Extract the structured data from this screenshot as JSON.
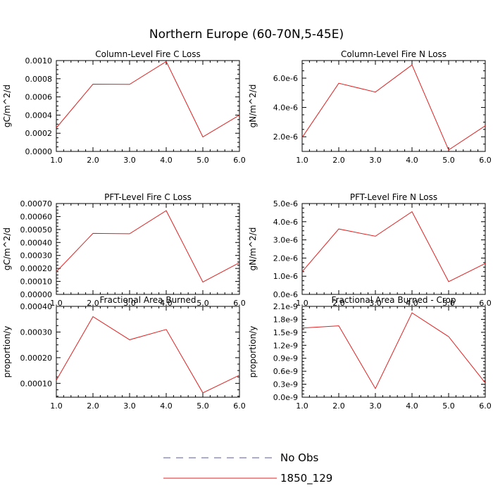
{
  "title": "Northern Europe (60-70N,5-45E)",
  "x_ticks": [
    "1.0",
    "2.0",
    "3.0",
    "4.0",
    "5.0",
    "6.0"
  ],
  "legend": [
    {
      "label": "No Obs",
      "style": "dashed",
      "color": "#5a5aa0"
    },
    {
      "label": "1850_129",
      "style": "solid",
      "color": "#e02020"
    }
  ],
  "chart_data": [
    {
      "type": "line",
      "title": "Column-Level Fire C Loss",
      "ylabel": "gC/m^2/d",
      "x": [
        1,
        2,
        3,
        4,
        5,
        6
      ],
      "ylim": [
        0,
        0.001
      ],
      "yticks": [
        0,
        0.0002,
        0.0004,
        0.0006,
        0.0008,
        0.001
      ],
      "ytick_labels": [
        "0.0000",
        "0.0002",
        "0.0004",
        "0.0006",
        "0.0008",
        "0.0010"
      ],
      "series": [
        {
          "name": "1850_129",
          "color": "#e02020",
          "values": [
            0.00026,
            0.00074,
            0.000738,
            0.00099,
            0.00016,
            0.0004
          ]
        }
      ]
    },
    {
      "type": "line",
      "title": "Column-Level Fire N Loss",
      "ylabel": "gN/m^2/d",
      "x": [
        1,
        2,
        3,
        4,
        5,
        6
      ],
      "ylim": [
        1e-06,
        7.2e-06
      ],
      "yticks": [
        2e-06,
        4e-06,
        6e-06
      ],
      "ytick_labels": [
        "2.0e-6",
        "4.0e-6",
        "6.0e-6"
      ],
      "series": [
        {
          "name": "1850_129",
          "color": "#e02020",
          "values": [
            1.95e-06,
            5.65e-06,
            5.05e-06,
            6.9e-06,
            1.1e-06,
            2.75e-06
          ]
        }
      ]
    },
    {
      "type": "line",
      "title": "PFT-Level Fire C Loss",
      "ylabel": "gC/m^2/d",
      "x": [
        1,
        2,
        3,
        4,
        5,
        6
      ],
      "ylim": [
        0,
        0.0007
      ],
      "yticks": [
        0,
        0.0001,
        0.0002,
        0.0003,
        0.0004,
        0.0005,
        0.0006,
        0.0007
      ],
      "ytick_labels": [
        "0.00000",
        "0.00010",
        "0.00020",
        "0.00030",
        "0.00040",
        "0.00050",
        "0.00060",
        "0.00070"
      ],
      "series": [
        {
          "name": "1850_129",
          "color": "#e02020",
          "values": [
            0.000175,
            0.00047,
            0.000467,
            0.000645,
            9.5e-05,
            0.000245
          ]
        }
      ]
    },
    {
      "type": "line",
      "title": "PFT-Level Fire N Loss",
      "ylabel": "gN/m^2/d",
      "x": [
        1,
        2,
        3,
        4,
        5,
        6
      ],
      "ylim": [
        0,
        5e-06
      ],
      "yticks": [
        0,
        1e-06,
        2e-06,
        3e-06,
        4e-06,
        5e-06
      ],
      "ytick_labels": [
        "0.0e-6",
        "1.0e-6",
        "2.0e-6",
        "3.0e-6",
        "4.0e-6",
        "5.0e-6"
      ],
      "series": [
        {
          "name": "1850_129",
          "color": "#e02020",
          "values": [
            1.25e-06,
            3.6e-06,
            3.2e-06,
            4.55e-06,
            7e-07,
            1.7e-06
          ]
        }
      ]
    },
    {
      "type": "line",
      "title": "Fractional Area Burned",
      "ylabel": "proportion/y",
      "x": [
        1,
        2,
        3,
        4,
        5,
        6
      ],
      "ylim": [
        4.6e-05,
        0.0004
      ],
      "yticks": [
        0.0001,
        0.0002,
        0.0003,
        0.0004
      ],
      "ytick_labels": [
        "0.00010",
        "0.00020",
        "0.00030",
        "0.00040"
      ],
      "series": [
        {
          "name": "1850_129",
          "color": "#e02020",
          "values": [
            0.000112,
            0.00036,
            0.00027,
            0.00031,
            6.3e-05,
            0.000132
          ]
        }
      ]
    },
    {
      "type": "line",
      "title": "Fractional Area Burned - Crop",
      "ylabel": "proportion/y",
      "x": [
        1,
        2,
        3,
        4,
        5,
        6
      ],
      "ylim": [
        0,
        2.1e-09
      ],
      "yticks": [
        0,
        3e-10,
        6e-10,
        9e-10,
        1.2e-09,
        1.5e-09,
        1.8e-09,
        2.1e-09
      ],
      "ytick_labels": [
        "0.0e-9",
        "0.3e-9",
        "0.6e-9",
        "0.9e-9",
        "1.2e-9",
        "1.5e-9",
        "1.8e-9",
        "2.1e-9"
      ],
      "series": [
        {
          "name": "1850_129",
          "color": "#e02020",
          "values": [
            1.6e-09,
            1.65e-09,
            2e-10,
            1.95e-09,
            1.4e-09,
            3.3e-10
          ]
        }
      ]
    }
  ]
}
